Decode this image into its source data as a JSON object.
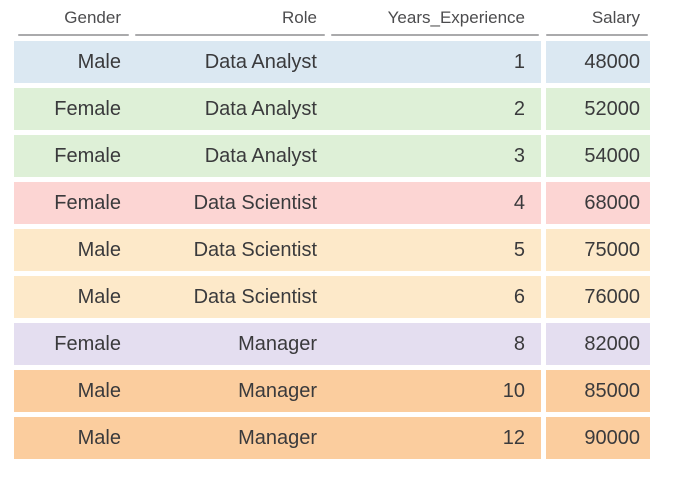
{
  "chart_data": {
    "type": "table",
    "columns": [
      "Gender",
      "Role",
      "Years_Experience",
      "Salary"
    ],
    "rows": [
      [
        "Male",
        "Data Analyst",
        1,
        48000
      ],
      [
        "Female",
        "Data Analyst",
        2,
        52000
      ],
      [
        "Female",
        "Data Analyst",
        3,
        54000
      ],
      [
        "Female",
        "Data Scientist",
        4,
        68000
      ],
      [
        "Male",
        "Data Scientist",
        5,
        75000
      ],
      [
        "Male",
        "Data Scientist",
        6,
        76000
      ],
      [
        "Female",
        "Manager",
        8,
        82000
      ],
      [
        "Male",
        "Manager",
        10,
        85000
      ],
      [
        "Male",
        "Manager",
        12,
        90000
      ]
    ]
  },
  "table": {
    "columns": [
      "Gender",
      "Role",
      "Years_Experience",
      "Salary"
    ],
    "rows": [
      {
        "cells": [
          "Male",
          "Data Analyst",
          "1",
          "48000"
        ],
        "color": "#dbe8f2"
      },
      {
        "cells": [
          "Female",
          "Data Analyst",
          "2",
          "52000"
        ],
        "color": "#def0d7"
      },
      {
        "cells": [
          "Female",
          "Data Analyst",
          "3",
          "54000"
        ],
        "color": "#def0d7"
      },
      {
        "cells": [
          "Female",
          "Data Scientist",
          "4",
          "68000"
        ],
        "color": "#fcd5d3"
      },
      {
        "cells": [
          "Male",
          "Data Scientist",
          "5",
          "75000"
        ],
        "color": "#fde9c9"
      },
      {
        "cells": [
          "Male",
          "Data Scientist",
          "6",
          "76000"
        ],
        "color": "#fde9c9"
      },
      {
        "cells": [
          "Female",
          "Manager",
          "8",
          "82000"
        ],
        "color": "#e4def0"
      },
      {
        "cells": [
          "Male",
          "Manager",
          "10",
          "85000"
        ],
        "color": "#fbcd9e"
      },
      {
        "cells": [
          "Male",
          "Manager",
          "12",
          "90000"
        ],
        "color": "#fbcd9e"
      }
    ],
    "style": {
      "page_background": "#ffffff",
      "header_text_color": "#4c4c4e",
      "body_text_color": "#3a3a3c",
      "underline_color": "#aaaaac"
    }
  }
}
